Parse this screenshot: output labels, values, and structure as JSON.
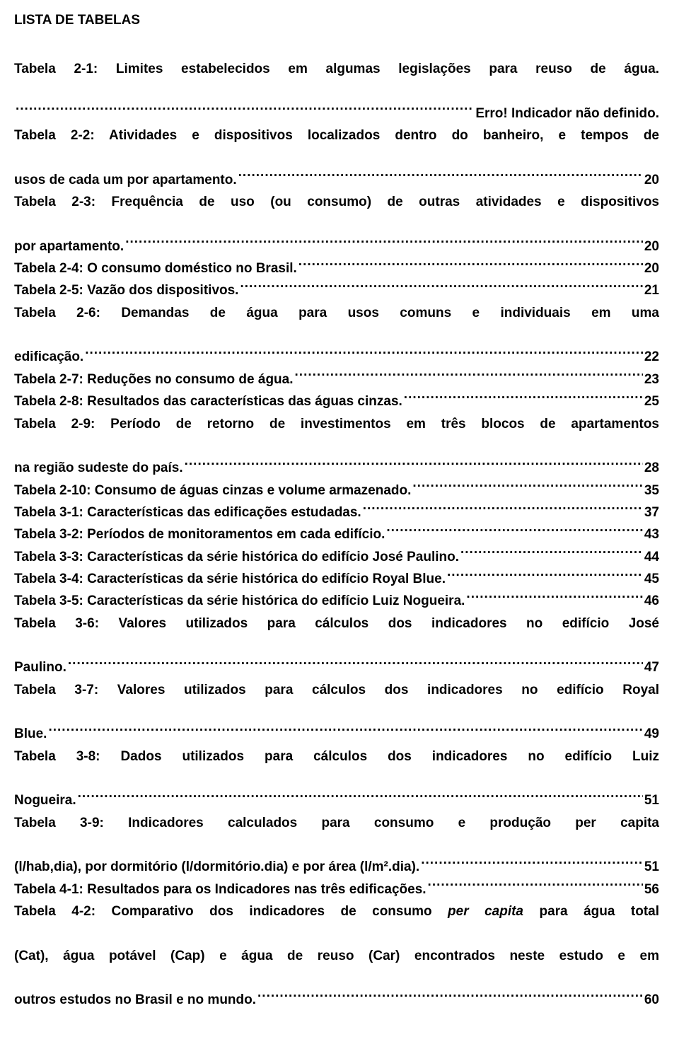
{
  "colors": {
    "text": "#000000",
    "background": "#ffffff"
  },
  "typography": {
    "font_family": "Arial",
    "title_fontsize": 19,
    "entry_fontsize": 19,
    "font_weight": "bold",
    "line_height": 1.65
  },
  "title": "LISTA DE TABELAS",
  "entries": [
    {
      "lines": [
        "Tabela 2-1: Limites estabelecidos em algumas legislações para reuso de água."
      ],
      "last": "",
      "page": "Erro! Indicador não definido."
    },
    {
      "lines": [
        "Tabela 2-2: Atividades e dispositivos localizados dentro do banheiro, e tempos de"
      ],
      "last": "usos de cada um por apartamento.",
      "page": "20"
    },
    {
      "lines": [
        "Tabela 2-3: Frequência de uso (ou consumo) de outras atividades e dispositivos"
      ],
      "last": "por apartamento.",
      "page": "20"
    },
    {
      "lines": [],
      "last": "Tabela 2-4: O consumo doméstico no Brasil.",
      "page": "20"
    },
    {
      "lines": [],
      "last": "Tabela 2-5: Vazão dos dispositivos.",
      "page": "21"
    },
    {
      "lines": [
        "Tabela 2-6: Demandas de água para usos comuns e individuais em uma"
      ],
      "last": "edificação.",
      "page": "22"
    },
    {
      "lines": [],
      "last": "Tabela 2-7: Reduções no consumo de água.",
      "page": "23"
    },
    {
      "lines": [],
      "last": "Tabela 2-8: Resultados das características das águas cinzas.",
      "page": "25"
    },
    {
      "lines": [
        "Tabela 2-9: Período de retorno de investimentos em três blocos de apartamentos"
      ],
      "last": "na região sudeste do país.",
      "page": "28"
    },
    {
      "lines": [],
      "last": "Tabela 2-10: Consumo de águas cinzas e volume armazenado.",
      "page": "35"
    },
    {
      "lines": [],
      "last": "Tabela 3-1: Características das edificações estudadas.",
      "page": "37"
    },
    {
      "lines": [],
      "last": "Tabela 3-2: Períodos de monitoramentos em cada edifício.",
      "page": "43"
    },
    {
      "lines": [],
      "last": "Tabela 3-3: Características da série histórica do edifício José Paulino.",
      "page": "44"
    },
    {
      "lines": [],
      "last": "Tabela 3-4: Características da série histórica do edifício Royal Blue.",
      "page": "45"
    },
    {
      "lines": [],
      "last": "Tabela 3-5: Características da série histórica do edifício Luiz Nogueira.",
      "page": "46"
    },
    {
      "lines": [
        "Tabela 3-6: Valores utilizados para cálculos dos indicadores no edifício José"
      ],
      "last": "Paulino.",
      "page": "47"
    },
    {
      "lines": [
        "Tabela 3-7: Valores utilizados para cálculos dos indicadores no edifício Royal"
      ],
      "last": "Blue.",
      "page": "49"
    },
    {
      "lines": [
        "Tabela 3-8: Dados utilizados para cálculos dos indicadores no edifício Luiz"
      ],
      "last": "Nogueira.",
      "page": "51"
    },
    {
      "lines": [
        "Tabela 3-9: Indicadores calculados para consumo e produção per capita"
      ],
      "last": "(l/hab,dia), por dormitório (l/dormitório.dia) e por área (l/m².dia).",
      "page": "51"
    },
    {
      "lines": [],
      "last": "Tabela 4-1: Resultados para os Indicadores nas três edificações.",
      "page": "56"
    },
    {
      "lines": [
        "Tabela 4-2: Comparativo dos indicadores de consumo per capita para água total",
        "(Cat), água potável (Cap) e água de reuso (Car) encontrados neste estudo e em"
      ],
      "last": "outros estudos no Brasil e no mundo.",
      "page": "60",
      "italic_phrases": [
        "per capita"
      ]
    }
  ]
}
